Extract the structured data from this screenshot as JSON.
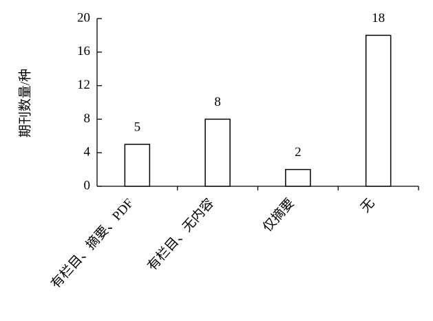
{
  "chart_data": {
    "type": "bar",
    "y_label": "期刊数量/种",
    "categories": [
      "有栏目、摘要、PDF",
      "有栏目、无内容",
      "仅摘要",
      "无"
    ],
    "values": [
      5,
      8,
      2,
      18
    ],
    "color": "#ffffff",
    "ylim": [
      0,
      20
    ],
    "yticks": [
      0,
      4,
      8,
      12,
      16,
      20
    ],
    "data_labels": true
  }
}
